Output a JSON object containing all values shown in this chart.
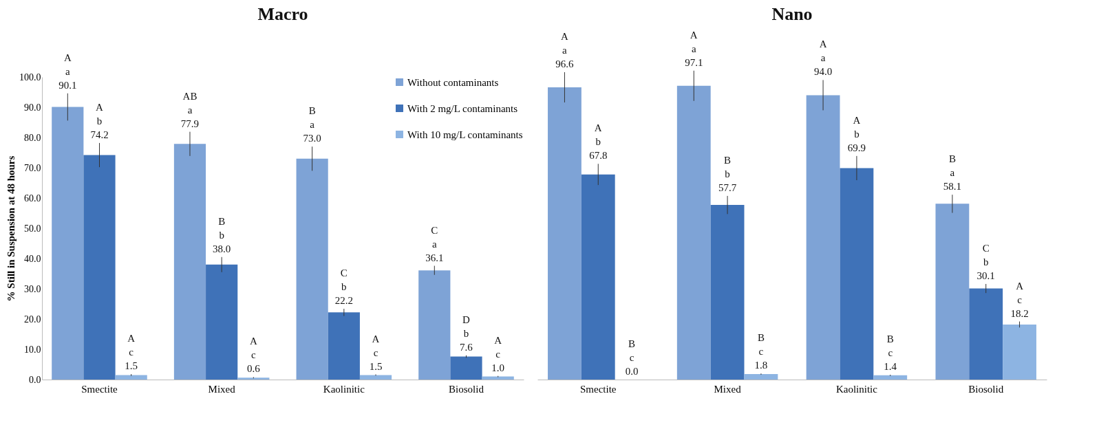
{
  "chart_data": [
    {
      "type": "bar",
      "title": "Macro",
      "ylabel": "% Still in Suspension at 48 hours",
      "categories": [
        "Smectite",
        "Mixed",
        "Kaolinitic",
        "Biosolid"
      ],
      "ylim": [
        0,
        100
      ],
      "yticks": [
        {
          "value": 0,
          "label": "0.0"
        },
        {
          "value": 10,
          "label": "10.0"
        },
        {
          "value": 20,
          "label": "20.0"
        },
        {
          "value": 30,
          "label": "30.0"
        },
        {
          "value": 40,
          "label": "40.0"
        },
        {
          "value": 50,
          "label": "50.0"
        },
        {
          "value": 60,
          "label": "60.0"
        },
        {
          "value": 70,
          "label": "70.0"
        },
        {
          "value": 80,
          "label": "80.0"
        },
        {
          "value": 90,
          "label": "90.0"
        },
        {
          "value": 100,
          "label": "100.0"
        }
      ],
      "legend": "top right",
      "series": [
        {
          "name": "Without contaminants",
          "color": "#7ea3d6",
          "values": [
            90.1,
            77.9,
            73.0,
            36.1
          ],
          "errors": [
            4.5,
            4,
            4,
            1.5
          ],
          "value_labels": [
            "A\na\n90.1",
            "AB\na\n77.9",
            "B\na\n73.0",
            "C\na\n36.1"
          ]
        },
        {
          "name": "With 2 mg/L contaminants",
          "color": "#3f72b8",
          "values": [
            74.2,
            38.0,
            22.2,
            7.6
          ],
          "errors": [
            4,
            2.5,
            1.2,
            0.4
          ],
          "value_labels": [
            "A\nb\n74.2",
            "B\nb\n38.0",
            "C\nb\n22.2",
            "D\nb\n7.6"
          ]
        },
        {
          "name": "With 10 mg/L contaminants",
          "color": "#8db4e2",
          "values": [
            1.5,
            0.6,
            1.5,
            1.0
          ],
          "errors": [
            0.3,
            0.2,
            0.2,
            0.2
          ],
          "value_labels": [
            "A\nc\n1.5",
            "A\nc\n0.6",
            "A\nc\n1.5",
            "A\nc\n1.0"
          ]
        }
      ]
    },
    {
      "type": "bar",
      "title": "Nano",
      "categories": [
        "Smectite",
        "Mixed",
        "Kaolinitic",
        "Biosolid"
      ],
      "ylim": [
        0,
        100
      ],
      "tick_labels": "x",
      "series": [
        {
          "color": "#7ea3d6",
          "values": [
            96.6,
            97.1,
            94.0,
            58.1
          ],
          "errors": [
            5,
            5,
            5,
            3
          ],
          "value_labels": [
            "A\na\n96.6",
            "A\na\n97.1",
            "A\na\n94.0",
            "B\na\n58.1"
          ]
        },
        {
          "color": "#3f72b8",
          "values": [
            67.8,
            57.7,
            69.9,
            30.1
          ],
          "errors": [
            3.5,
            3,
            4,
            1.5
          ],
          "value_labels": [
            "A\nb\n67.8",
            "B\nb\n57.7",
            "A\nb\n69.9",
            "C\nb\n30.1"
          ]
        },
        {
          "color": "#8db4e2",
          "values": [
            0.0,
            1.8,
            1.4,
            18.2
          ],
          "errors": [
            null,
            0.2,
            0.2,
            1
          ],
          "value_labels": [
            "B\nc\n0.0",
            "B\nc\n1.8",
            "B\nc\n1.4",
            "A\nc\n18.2"
          ]
        }
      ]
    }
  ]
}
